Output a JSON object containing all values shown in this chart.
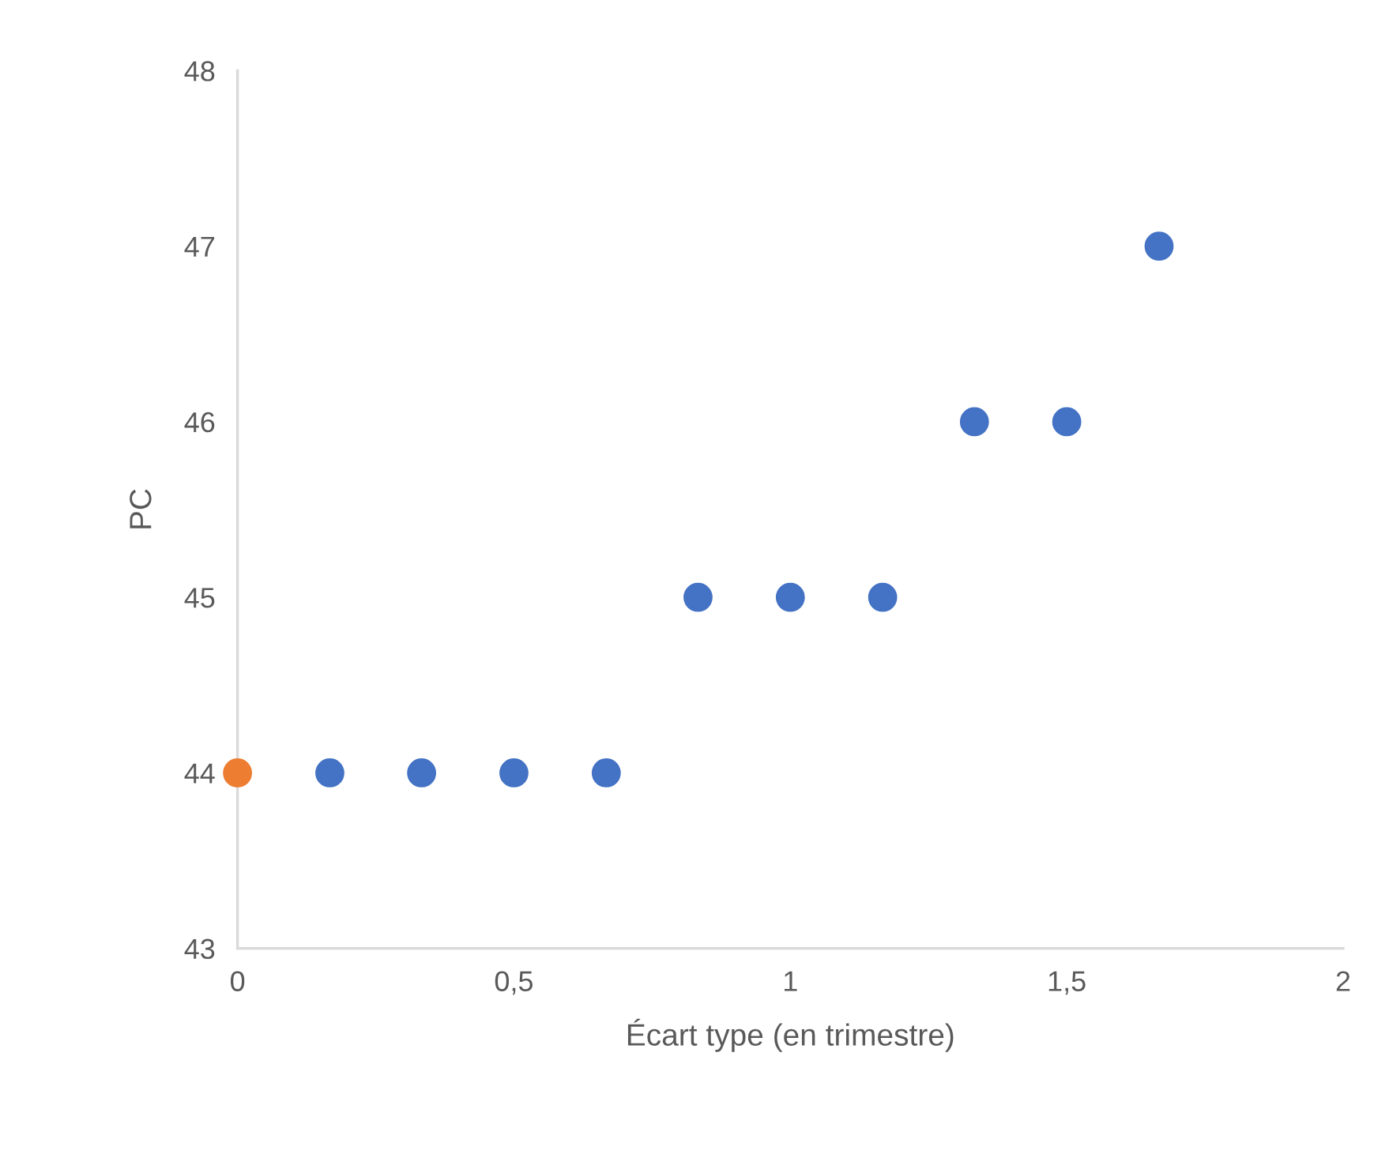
{
  "chart_data": {
    "type": "scatter",
    "xlabel": "Écart type (en trimestre)",
    "ylabel": "PC",
    "series": [
      {
        "color": "#4472c4",
        "x": [
          0.167,
          0.333,
          0.5,
          0.667,
          0.833,
          1.0,
          1.167,
          1.333,
          1.5,
          1.667
        ],
        "values": [
          44,
          44,
          44,
          44,
          45,
          45,
          45,
          46,
          46,
          47
        ]
      },
      {
        "color": "#ed7d31",
        "x": [
          0
        ],
        "values": [
          44
        ]
      }
    ],
    "xlim": [
      0,
      2
    ],
    "xticks": [
      0,
      {
        "value": 0.5,
        "label": "0,5"
      },
      1,
      {
        "value": 1.5,
        "label": "1,5"
      },
      2
    ],
    "ylim": [
      43,
      48
    ],
    "yticks": [
      43,
      44,
      45,
      46,
      47,
      48
    ],
    "marker": "circle",
    "grid": false
  }
}
